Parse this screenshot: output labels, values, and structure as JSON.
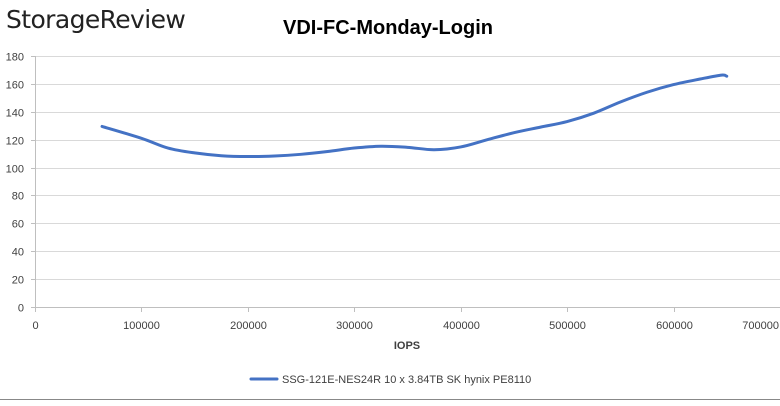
{
  "brand": {
    "logo_text": "StorageReview"
  },
  "colors": {
    "series": "#4472C4",
    "grid": "#D9D9D9",
    "axis": "#BFBFBF",
    "text": "#404040",
    "title": "#000000",
    "logo": "#222222",
    "border": "#888888"
  },
  "chart_data": {
    "type": "line",
    "title": "VDI-FC-Monday-Login",
    "xlabel": "IOPS",
    "ylabel": "",
    "xlim": [
      0,
      700000
    ],
    "ylim": [
      0,
      180
    ],
    "x_ticks": [
      0,
      100000,
      200000,
      300000,
      400000,
      500000,
      600000,
      700000
    ],
    "y_ticks": [
      0,
      20,
      40,
      60,
      80,
      100,
      120,
      140,
      160,
      180
    ],
    "grid": "horizontal",
    "legend_position": "bottom",
    "series": [
      {
        "name": "SSG-121E-NES24R 10 x 3.84TB SK hynix PE8110",
        "x": [
          63000,
          100000,
          125000,
          150000,
          175000,
          200000,
          225000,
          250000,
          275000,
          300000,
          325000,
          350000,
          375000,
          400000,
          425000,
          450000,
          475000,
          500000,
          525000,
          550000,
          575000,
          600000,
          625000,
          645000,
          650000
        ],
        "y": [
          129.5,
          121,
          114,
          110.5,
          108.5,
          107.9,
          108.3,
          109.5,
          111.5,
          114,
          115.3,
          114.5,
          112.8,
          114.8,
          120,
          125,
          129,
          133,
          139,
          147,
          154,
          159.5,
          163.5,
          166.3,
          165.5
        ]
      }
    ]
  }
}
